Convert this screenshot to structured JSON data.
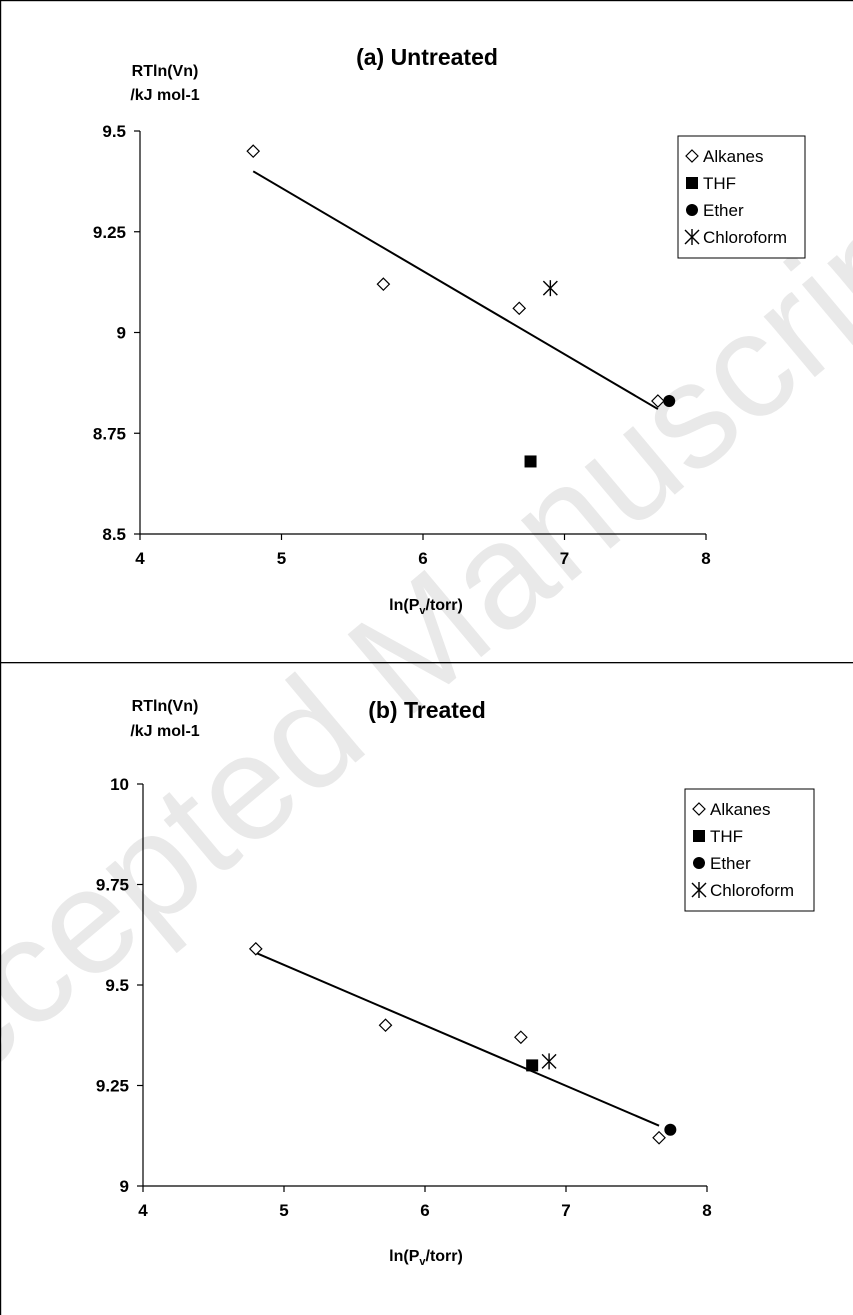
{
  "watermark": "Accepted Manuscript",
  "chart_data": [
    {
      "type": "scatter",
      "title": "(a) Untreated",
      "ylabel_line1": "RTln(Vn)",
      "ylabel_line2": "/kJ mol-1",
      "xlabel_main": "ln(P",
      "xlabel_sub": "v",
      "xlabel_tail": "/torr)",
      "xlim": [
        4,
        8
      ],
      "ylim": [
        8.5,
        9.5
      ],
      "xticks": [
        "4",
        "5",
        "6",
        "7",
        "8"
      ],
      "yticks": [
        "8.5",
        "8.75",
        "9",
        "9.25",
        "9.5"
      ],
      "grid": false,
      "legend_position": "top-right",
      "series": [
        {
          "name": "Alkanes",
          "marker": "diamond-open",
          "x": [
            4.8,
            5.72,
            6.68,
            7.66
          ],
          "y": [
            9.45,
            9.12,
            9.06,
            8.83
          ]
        },
        {
          "name": "THF",
          "marker": "square-filled",
          "x": [
            6.76
          ],
          "y": [
            8.68
          ]
        },
        {
          "name": "Ether",
          "marker": "circle-filled",
          "x": [
            7.74
          ],
          "y": [
            8.83
          ]
        },
        {
          "name": "Chloroform",
          "marker": "asterisk",
          "x": [
            6.9
          ],
          "y": [
            9.11
          ]
        }
      ],
      "trendline": {
        "x": [
          4.8,
          7.66
        ],
        "y": [
          9.4,
          8.81
        ]
      }
    },
    {
      "type": "scatter",
      "title": "(b) Treated",
      "ylabel_line1": "RTln(Vn)",
      "ylabel_line2": "/kJ mol-1",
      "xlabel_main": "ln(P",
      "xlabel_sub": "v",
      "xlabel_tail": "/torr)",
      "xlim": [
        4,
        8
      ],
      "ylim": [
        9,
        10
      ],
      "xticks": [
        "4",
        "5",
        "6",
        "7",
        "8"
      ],
      "yticks": [
        "9",
        "9.25",
        "9.5",
        "9.75",
        "10"
      ],
      "grid": false,
      "legend_position": "top-right",
      "series": [
        {
          "name": "Alkanes",
          "marker": "diamond-open",
          "x": [
            4.8,
            5.72,
            6.68,
            7.66
          ],
          "y": [
            9.59,
            9.4,
            9.37,
            9.12
          ]
        },
        {
          "name": "THF",
          "marker": "square-filled",
          "x": [
            6.76
          ],
          "y": [
            9.3
          ]
        },
        {
          "name": "Ether",
          "marker": "circle-filled",
          "x": [
            7.74
          ],
          "y": [
            9.14
          ]
        },
        {
          "name": "Chloroform",
          "marker": "asterisk",
          "x": [
            6.88
          ],
          "y": [
            9.31
          ]
        }
      ],
      "trendline": {
        "x": [
          4.8,
          7.66
        ],
        "y": [
          9.58,
          9.15
        ]
      }
    }
  ]
}
